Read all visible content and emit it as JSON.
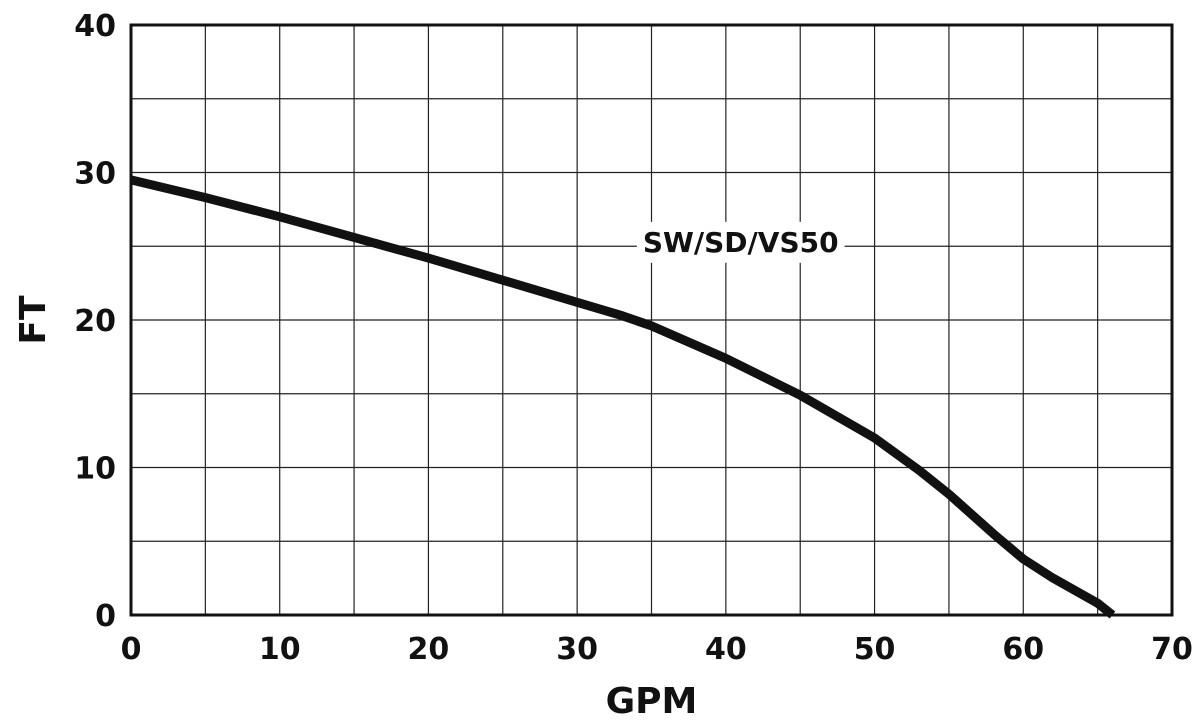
{
  "chart_data": {
    "type": "line",
    "title": "",
    "xlabel": "GPM",
    "ylabel": "FT",
    "xlim": [
      0,
      70
    ],
    "ylim": [
      0,
      40
    ],
    "xticks": [
      0,
      10,
      20,
      30,
      40,
      50,
      60,
      70
    ],
    "yticks": [
      0,
      10,
      20,
      30,
      40
    ],
    "grid": true,
    "series": [
      {
        "name": "SW/SD/VS50",
        "color": "#111111",
        "x": [
          0,
          5,
          10,
          15,
          20,
          25,
          28,
          30,
          33,
          35,
          40,
          45,
          50,
          53,
          55,
          58,
          60,
          62,
          65,
          66
        ],
        "y": [
          29.5,
          28.3,
          27.0,
          25.6,
          24.2,
          22.7,
          21.8,
          21.2,
          20.3,
          19.6,
          17.4,
          14.9,
          12.0,
          9.8,
          8.2,
          5.5,
          3.8,
          2.5,
          0.8,
          0
        ]
      }
    ],
    "annotations": [
      {
        "text": "SW/SD/VS50",
        "x": 41,
        "y": 25.3
      }
    ]
  }
}
